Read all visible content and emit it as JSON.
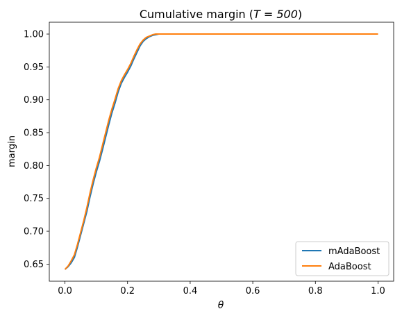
{
  "chart_data": {
    "type": "line",
    "title": "Cumulative margin (",
    "title_math": "T = 500",
    "title_close": ")",
    "xlabel": "θ",
    "ylabel": "margin",
    "xlim": [
      -0.05,
      1.05
    ],
    "ylim": [
      0.624,
      1.018
    ],
    "xticks": [
      0.0,
      0.2,
      0.4,
      0.6,
      0.8,
      1.0
    ],
    "xtick_labels": [
      "0.0",
      "0.2",
      "0.4",
      "0.6",
      "0.8",
      "1.0"
    ],
    "yticks": [
      0.65,
      0.7,
      0.75,
      0.8,
      0.85,
      0.9,
      0.95,
      1.0
    ],
    "ytick_labels": [
      "0.65",
      "0.70",
      "0.75",
      "0.80",
      "0.85",
      "0.90",
      "0.95",
      "1.00"
    ],
    "grid": false,
    "legend_position": "lower right",
    "series": [
      {
        "name": "mAdaBoost",
        "color": "#1f77b4",
        "x": [
          0.0,
          0.01,
          0.02,
          0.03,
          0.04,
          0.05,
          0.06,
          0.07,
          0.08,
          0.09,
          0.1,
          0.11,
          0.12,
          0.13,
          0.14,
          0.15,
          0.16,
          0.17,
          0.18,
          0.19,
          0.2,
          0.21,
          0.22,
          0.23,
          0.24,
          0.25,
          0.26,
          0.27,
          0.28,
          0.29,
          0.3,
          0.4,
          0.6,
          0.8,
          1.0
        ],
        "y": [
          0.642,
          0.646,
          0.652,
          0.66,
          0.676,
          0.694,
          0.712,
          0.73,
          0.752,
          0.772,
          0.79,
          0.806,
          0.824,
          0.843,
          0.862,
          0.88,
          0.895,
          0.912,
          0.925,
          0.934,
          0.942,
          0.951,
          0.962,
          0.972,
          0.982,
          0.989,
          0.993,
          0.996,
          0.998,
          0.999,
          1.0,
          1.0,
          1.0,
          1.0,
          1.0
        ]
      },
      {
        "name": "AdaBoost",
        "color": "#ff7f0e",
        "x": [
          0.0,
          0.01,
          0.02,
          0.03,
          0.04,
          0.05,
          0.06,
          0.07,
          0.08,
          0.09,
          0.1,
          0.11,
          0.12,
          0.13,
          0.14,
          0.15,
          0.16,
          0.17,
          0.18,
          0.19,
          0.2,
          0.21,
          0.22,
          0.23,
          0.24,
          0.25,
          0.26,
          0.27,
          0.28,
          0.29,
          0.3,
          0.4,
          0.6,
          0.8,
          1.0
        ],
        "y": [
          0.642,
          0.647,
          0.655,
          0.664,
          0.68,
          0.698,
          0.716,
          0.736,
          0.758,
          0.778,
          0.796,
          0.812,
          0.831,
          0.85,
          0.869,
          0.886,
          0.901,
          0.917,
          0.929,
          0.938,
          0.946,
          0.955,
          0.966,
          0.976,
          0.985,
          0.991,
          0.995,
          0.997,
          0.999,
          1.0,
          1.0,
          1.0,
          1.0,
          1.0,
          1.0
        ]
      }
    ]
  }
}
